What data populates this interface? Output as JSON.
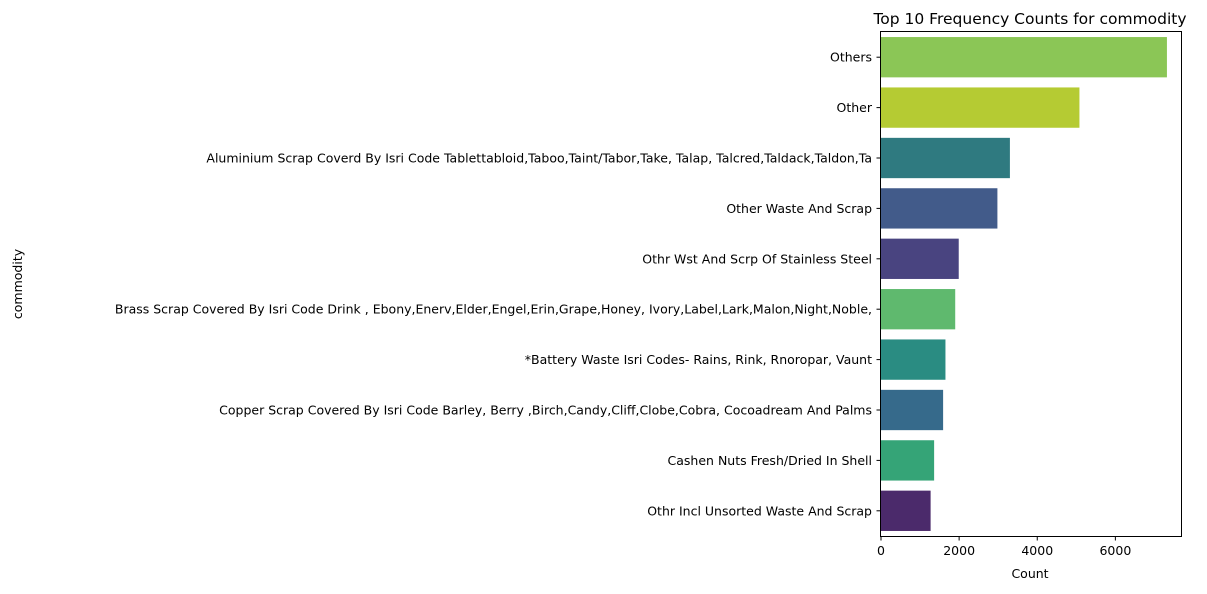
{
  "chart_data": {
    "type": "bar",
    "orientation": "horizontal",
    "title": "Top 10 Frequency Counts for commodity",
    "xlabel": "Count",
    "ylabel": "commodity",
    "xlim": [
      0,
      7680
    ],
    "xticks": [
      0,
      2000,
      4000,
      6000
    ],
    "grid": false,
    "categories": [
      "Others",
      "Other",
      "Aluminium Scrap Coverd By Isri Code Tablettabloid,Taboo,Taint/Tabor,Take, Talap, Talcred,Taldack,Taldon,Ta",
      "Other Waste And Scrap",
      "Othr Wst And Scrp Of Stainless Steel",
      "Brass Scrap Covered By Isri Code Drink , Ebony,Enerv,Elder,Engel,Erin,Grape,Honey, Ivory,Label,Lark,Malon,Night,Noble,",
      "*Battery Waste Isri Codes- Rains, Rink, Rnoropar, Vaunt",
      "Copper Scrap Covered By Isri Code Barley, Berry ,Birch,Candy,Cliff,Clobe,Cobra, Cocoadream And Palms",
      "Cashen Nuts Fresh/Dried In Shell",
      "Othr Incl Unsorted Waste And Scrap"
    ],
    "values": [
      7320,
      5080,
      3300,
      2980,
      1990,
      1900,
      1650,
      1590,
      1360,
      1270
    ],
    "colors": [
      "#8bc656",
      "#b5cb33",
      "#2f7a80",
      "#425b8a",
      "#494480",
      "#5fb96e",
      "#2a8c82",
      "#366a8b",
      "#35a477",
      "#4b2a6b"
    ]
  }
}
